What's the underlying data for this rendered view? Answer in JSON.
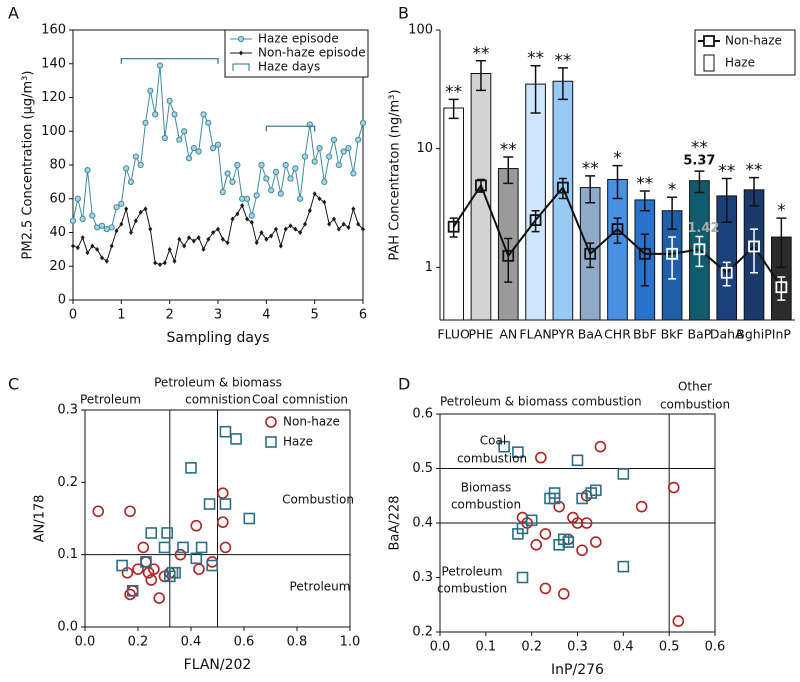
{
  "chart_data": [
    {
      "type": "line",
      "label": "A",
      "xlabel": "Sampling days",
      "ylabel": "PM2.5 Concentration (µg/m³)",
      "xlim": [
        0,
        6
      ],
      "xticks": [
        0,
        1,
        2,
        3,
        4,
        5,
        6
      ],
      "ylim": [
        0,
        160
      ],
      "yticks": [
        0,
        20,
        40,
        60,
        80,
        100,
        120,
        140,
        160
      ],
      "x": [
        0,
        0.1,
        0.2,
        0.3,
        0.4,
        0.5,
        0.6,
        0.7,
        0.8,
        0.9,
        1,
        1.1,
        1.2,
        1.3,
        1.4,
        1.5,
        1.6,
        1.7,
        1.8,
        1.9,
        2,
        2.1,
        2.2,
        2.3,
        2.4,
        2.5,
        2.6,
        2.7,
        2.8,
        2.9,
        3,
        3.1,
        3.2,
        3.3,
        3.4,
        3.5,
        3.6,
        3.7,
        3.8,
        3.9,
        4,
        4.1,
        4.2,
        4.3,
        4.4,
        4.5,
        4.6,
        4.7,
        4.8,
        4.9,
        5,
        5.1,
        5.2,
        5.3,
        5.4,
        5.5,
        5.6,
        5.7,
        5.8,
        5.9,
        6
      ],
      "series": [
        {
          "name": "Haze episode",
          "color": "#3f8aa3",
          "marker": "circle",
          "values": [
            47,
            60,
            48,
            77,
            50,
            43,
            44,
            42,
            43,
            55,
            57,
            78,
            70,
            85,
            80,
            105,
            124,
            110,
            139,
            96,
            118,
            110,
            95,
            100,
            84,
            90,
            88,
            110,
            105,
            90,
            92,
            64,
            75,
            70,
            80,
            60,
            60,
            50,
            62,
            80,
            72,
            65,
            76,
            63,
            80,
            72,
            78,
            60,
            85,
            104,
            82,
            90,
            70,
            85,
            95,
            80,
            88,
            90,
            75,
            95,
            105
          ]
        },
        {
          "name": "Non-haze episode",
          "color": "#1a1a1a",
          "marker": "diamond",
          "values": [
            32,
            31,
            37,
            28,
            32,
            30,
            25,
            23,
            32,
            41,
            45,
            54,
            40,
            47,
            52,
            54,
            42,
            22,
            21,
            22,
            30,
            23,
            36,
            32,
            37,
            35,
            37,
            30,
            36,
            40,
            42,
            36,
            34,
            48,
            51,
            56,
            48,
            46,
            34,
            40,
            36,
            38,
            42,
            32,
            42,
            44,
            42,
            40,
            45,
            53,
            63,
            60,
            58,
            45,
            48,
            42,
            45,
            43,
            54,
            45,
            42
          ]
        }
      ],
      "haze_days": {
        "name": "Haze days",
        "color": "#2a6f86",
        "ranges": [
          {
            "x": [
              1,
              3
            ],
            "y": 143
          },
          {
            "x": [
              4,
              5
            ],
            "y": 103
          }
        ]
      }
    },
    {
      "type": "bar",
      "label": "B",
      "ylabel": "PAH Concentraton (ng/m³)",
      "log_scale": true,
      "ylim": [
        0.36,
        100
      ],
      "yticks": [
        1,
        10,
        100
      ],
      "categories": [
        "FLUO",
        "PHE",
        "AN",
        "FLAN",
        "PYR",
        "BaA",
        "CHR",
        "BbF",
        "BkF",
        "BaP",
        "DahA",
        "BghiP",
        "InP"
      ],
      "significance": [
        "**",
        "**",
        "**",
        "**",
        "**",
        "**",
        "*",
        "**",
        "*",
        "**",
        "**",
        "**",
        "*"
      ],
      "series": [
        {
          "name": "Haze",
          "mark": "bar",
          "colors": [
            "#ffffff",
            "#d3d3d3",
            "#9a9a9a",
            "#cfe6ff",
            "#99c9f5",
            "#8fa9c9",
            "#4a90e2",
            "#2a72c9",
            "#1f5fa8",
            "#0f5c6e",
            "#1b3f78",
            "#1a3a6b",
            "#2b2b2b"
          ],
          "values": [
            22,
            43,
            6.8,
            35,
            37,
            4.7,
            5.5,
            3.7,
            3.0,
            5.37,
            4.0,
            4.5,
            1.8
          ],
          "errors": [
            4,
            12,
            1.7,
            15,
            11,
            1.2,
            1.7,
            0.7,
            0.9,
            1.1,
            1.6,
            1.2,
            0.8
          ],
          "value_labels": [
            null,
            null,
            null,
            null,
            null,
            null,
            null,
            null,
            null,
            "5.37",
            null,
            null,
            null
          ]
        },
        {
          "name": "Non-haze",
          "mark": "square",
          "color": "#111111",
          "values": [
            2.2,
            4.9,
            1.25,
            2.5,
            4.7,
            1.3,
            2.1,
            1.3,
            1.3,
            1.42,
            0.9,
            1.5,
            0.68
          ],
          "errors": [
            0.4,
            0.6,
            0.5,
            0.5,
            0.9,
            0.3,
            0.5,
            0.6,
            0.5,
            0.4,
            0.2,
            0.6,
            0.15
          ],
          "value_labels": [
            null,
            null,
            null,
            null,
            null,
            null,
            null,
            null,
            null,
            "1.42",
            null,
            null,
            null
          ]
        }
      ]
    },
    {
      "type": "scatter",
      "label": "C",
      "xlabel": "FLAN/202",
      "ylabel": "AN/178",
      "legend": "upper right",
      "xlim": [
        0,
        1
      ],
      "xticks": [
        {
          "value": 0,
          "label": "0.0"
        },
        0.2,
        0.4,
        0.6,
        0.8,
        {
          "value": 1,
          "label": "1.0"
        }
      ],
      "ylim": [
        0,
        0.3
      ],
      "yticks": [
        {
          "value": 0,
          "label": "0.0"
        },
        0.1,
        0.2,
        0.3
      ],
      "vlines": [
        0.32,
        0.5
      ],
      "hlines": [
        0.1
      ],
      "annotations": [
        "Petroleum",
        "Petroleum & biomass",
        "comnistion",
        "Coal comnistion",
        "Combustion",
        "Petroleum"
      ],
      "series": [
        {
          "name": "Non-haze",
          "color": "#b22222",
          "marker": "circle",
          "x": [
            0.05,
            0.17,
            0.16,
            0.17,
            0.18,
            0.2,
            0.22,
            0.23,
            0.24,
            0.25,
            0.26,
            0.28,
            0.3,
            0.32,
            0.36,
            0.42,
            0.43,
            0.48,
            0.52,
            0.53,
            0.52
          ],
          "y": [
            0.16,
            0.16,
            0.075,
            0.045,
            0.05,
            0.08,
            0.11,
            0.09,
            0.075,
            0.065,
            0.08,
            0.04,
            0.07,
            0.075,
            0.1,
            0.14,
            0.08,
            0.09,
            0.145,
            0.11,
            0.185
          ]
        },
        {
          "name": "Haze",
          "color": "#2a6f86",
          "marker": "square",
          "x": [
            0.14,
            0.18,
            0.23,
            0.25,
            0.3,
            0.31,
            0.32,
            0.34,
            0.37,
            0.4,
            0.42,
            0.44,
            0.47,
            0.48,
            0.53,
            0.53,
            0.57,
            0.62,
            0.33
          ],
          "y": [
            0.085,
            0.05,
            0.09,
            0.13,
            0.11,
            0.13,
            0.07,
            0.075,
            0.11,
            0.22,
            0.095,
            0.11,
            0.17,
            0.085,
            0.17,
            0.27,
            0.26,
            0.15,
            0.075
          ]
        }
      ]
    },
    {
      "type": "scatter",
      "label": "D",
      "xlabel": "InP/276",
      "ylabel": "BaA/228",
      "xlim": [
        0,
        0.6
      ],
      "xticks": [
        {
          "value": 0,
          "label": "0.0"
        },
        0.1,
        0.2,
        0.3,
        0.4,
        0.5,
        0.6
      ],
      "ylim": [
        0.2,
        0.6
      ],
      "yticks": [
        0.2,
        0.3,
        0.4,
        0.5,
        0.6
      ],
      "vlines": [
        0.5
      ],
      "hlines": [
        0.5,
        0.4
      ],
      "annotations": [
        "Petroleum & biomass combustion",
        "Other",
        "combustion",
        "Coal",
        "combustion",
        "Biomass",
        "combustion",
        "Petroleum",
        "combustion"
      ],
      "series": [
        {
          "name": "Non-haze",
          "color": "#b22222",
          "marker": "circle",
          "x": [
            0.22,
            0.35,
            0.18,
            0.19,
            0.21,
            0.23,
            0.23,
            0.26,
            0.27,
            0.28,
            0.29,
            0.3,
            0.31,
            0.32,
            0.32,
            0.34,
            0.44,
            0.51,
            0.52
          ],
          "y": [
            0.52,
            0.54,
            0.41,
            0.4,
            0.36,
            0.38,
            0.28,
            0.43,
            0.27,
            0.37,
            0.41,
            0.4,
            0.35,
            0.4,
            0.45,
            0.365,
            0.43,
            0.465,
            0.22
          ]
        },
        {
          "name": "Haze",
          "color": "#2a6f86",
          "marker": "square",
          "x": [
            0.14,
            0.17,
            0.3,
            0.17,
            0.18,
            0.2,
            0.18,
            0.24,
            0.25,
            0.25,
            0.26,
            0.27,
            0.28,
            0.31,
            0.33,
            0.34,
            0.4,
            0.4
          ],
          "y": [
            0.54,
            0.53,
            0.515,
            0.38,
            0.39,
            0.405,
            0.3,
            0.445,
            0.445,
            0.455,
            0.36,
            0.37,
            0.365,
            0.445,
            0.455,
            0.46,
            0.49,
            0.32
          ]
        }
      ]
    }
  ]
}
